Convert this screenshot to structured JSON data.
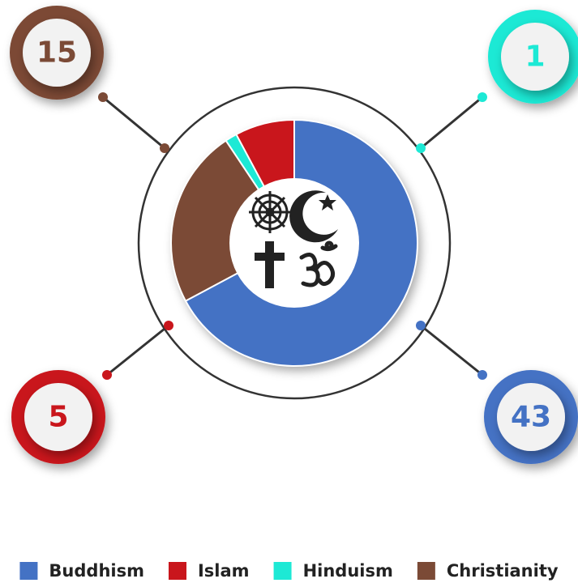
{
  "chart_data": {
    "type": "donut",
    "categories": [
      "Buddhism",
      "Islam",
      "Hinduism",
      "Christianity"
    ],
    "values": [
      43,
      5,
      1,
      15
    ],
    "colors": [
      "#4472c4",
      "#c9161c",
      "#1de9d5",
      "#7b4a36"
    ],
    "legend": "bottom"
  }
}
